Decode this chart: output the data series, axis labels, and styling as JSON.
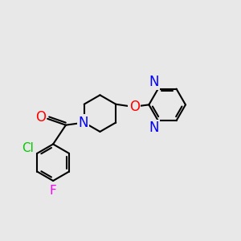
{
  "background_color": "#e8e8e8",
  "bond_color": "#000000",
  "bond_width": 1.5,
  "atom_colors": {
    "O": "#ff0000",
    "N": "#0000ff",
    "Cl": "#00cc00",
    "F": "#ff00ff"
  }
}
